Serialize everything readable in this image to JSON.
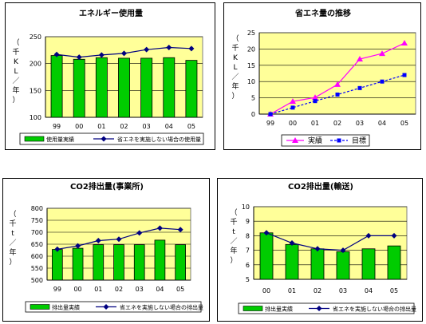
{
  "chart_data": [
    {
      "type": "bar",
      "title": "エネルギー使用量",
      "ylabel": "（千KL／年）",
      "categories": [
        "99",
        "00",
        "01",
        "02",
        "03",
        "04",
        "05"
      ],
      "ylim": [
        100,
        250
      ],
      "yticks": [
        100,
        150,
        200,
        250
      ],
      "grid": true,
      "series": [
        {
          "name": "使用量実績",
          "type": "bar",
          "values": [
            215,
            208,
            211,
            210,
            210,
            211,
            206
          ]
        },
        {
          "name": "省エネを実施しない場合の使用量",
          "type": "line",
          "values": [
            217,
            212,
            216,
            219,
            226,
            230,
            228
          ]
        }
      ],
      "legend": "bottom"
    },
    {
      "type": "line",
      "title": "省エネ量の推移",
      "ylabel": "（千KL／年）",
      "categories": [
        "99",
        "00",
        "01",
        "02",
        "03",
        "04",
        "05"
      ],
      "ylim": [
        0,
        25
      ],
      "yticks": [
        0,
        5,
        10,
        15,
        20,
        25
      ],
      "grid": true,
      "series": [
        {
          "name": "実績",
          "values": [
            0,
            3.9,
            5.1,
            9.1,
            16.9,
            18.6,
            21.8
          ]
        },
        {
          "name": "目標",
          "values": [
            0,
            2,
            4,
            6,
            8,
            10,
            12
          ]
        }
      ],
      "legend": "bottom"
    },
    {
      "type": "bar",
      "title": "CO2排出量(事業所)",
      "ylabel": "（千t／年）",
      "categories": [
        "99",
        "00",
        "01",
        "02",
        "03",
        "04",
        "05"
      ],
      "ylim": [
        500,
        800
      ],
      "yticks": [
        500,
        550,
        600,
        650,
        700,
        750,
        800
      ],
      "grid": true,
      "series": [
        {
          "name": "排出量実績",
          "type": "bar",
          "values": [
            628,
            633,
            648,
            648,
            648,
            667,
            648
          ]
        },
        {
          "name": "省エネを実施しない場合の排出量",
          "type": "line",
          "values": [
            629,
            643,
            665,
            671,
            697,
            717,
            711
          ]
        }
      ],
      "legend": "bottom"
    },
    {
      "type": "bar",
      "title": "CO2排出量(輸送)",
      "ylabel": "（千t／年）",
      "categories": [
        "00",
        "01",
        "02",
        "03",
        "04",
        "05"
      ],
      "ylim": [
        5,
        10
      ],
      "yticks": [
        5,
        6,
        7,
        8,
        9,
        10
      ],
      "grid": true,
      "series": [
        {
          "name": "排出量実績",
          "type": "bar",
          "values": [
            8.2,
            7.4,
            7.1,
            6.9,
            7.1,
            7.3
          ]
        },
        {
          "name": "省エネを実施しない場合の排出量",
          "type": "line",
          "values": [
            8.2,
            7.5,
            7.1,
            7.0,
            8.0,
            8.0
          ]
        }
      ],
      "legend": "bottom"
    }
  ],
  "colors": {
    "plot_bg": "#ffff99",
    "bar": "#00cc00",
    "line_dark": "#000080",
    "line_actual": "#ff00ff",
    "line_target": "#0000ff"
  }
}
